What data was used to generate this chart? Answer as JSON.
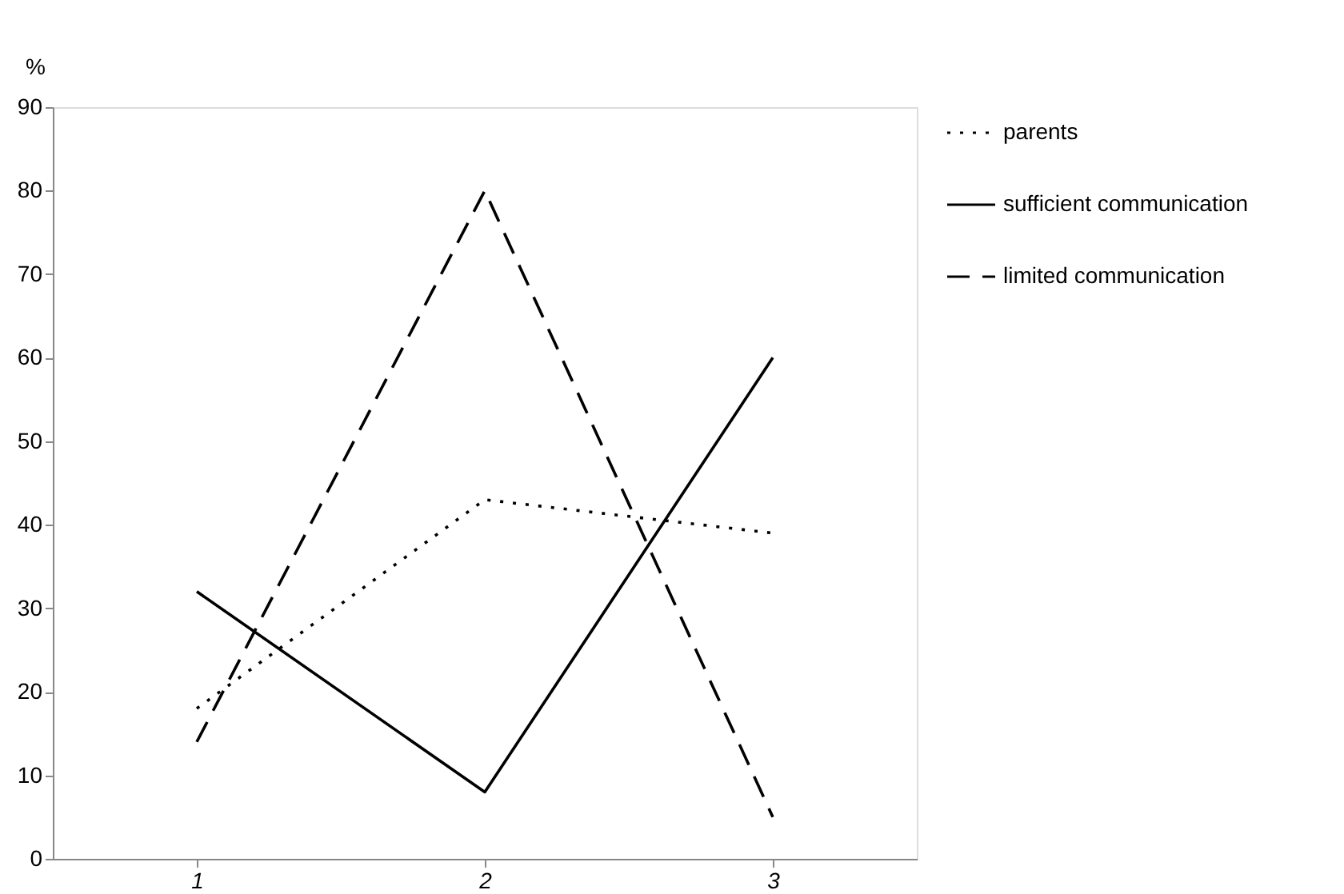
{
  "chart_data": {
    "type": "line",
    "ylabel": "%",
    "categories": [
      "1",
      "2",
      "3"
    ],
    "ylim": [
      0,
      90
    ],
    "yticks": [
      0,
      10,
      20,
      30,
      40,
      50,
      60,
      70,
      80,
      90
    ],
    "grid": false,
    "legend": "right",
    "marker": "none",
    "series": [
      {
        "name": "parents",
        "color": "#000000",
        "line_style": "dotted",
        "values": [
          18,
          43,
          39
        ]
      },
      {
        "name": "sufficient communication",
        "color": "#000000",
        "line_style": "solid",
        "values": [
          32,
          8,
          60
        ]
      },
      {
        "name": "limited communication",
        "color": "#000000",
        "line_style": "dashed",
        "values": [
          14,
          80,
          5
        ]
      }
    ]
  }
}
